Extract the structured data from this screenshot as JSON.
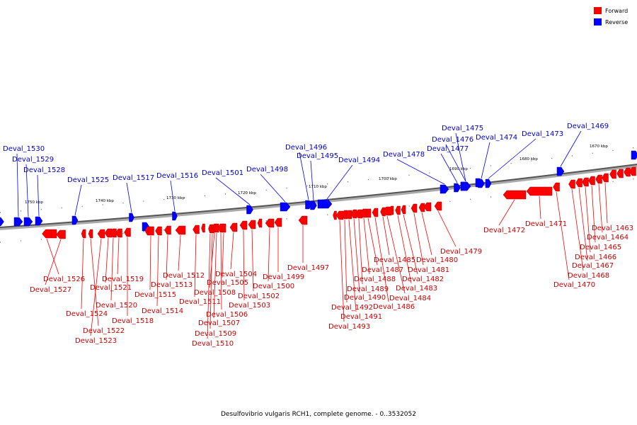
{
  "caption": "Desulfovibrio vulgaris RCH1, complete genome. - 0..3532052",
  "legend": [
    {
      "label": "Forward",
      "color": "#ff0000"
    },
    {
      "label": "Reverse",
      "color": "#0000ff"
    }
  ],
  "colors": {
    "forward": "#ff0000",
    "reverse": "#0000ff",
    "forward_label": "#cc0000",
    "reverse_label": "#0000cc"
  },
  "ticks": [
    "1750 kbp",
    "1740 kbp",
    "1730 kbp",
    "1720 kbp",
    "1710 kbp",
    "1700 kbp",
    "1690 kbp",
    "1680 kbp",
    "1670 kbp"
  ],
  "genes": [
    {
      "name": "Deval_1530",
      "strand": "reverse"
    },
    {
      "name": "Deval_1529",
      "strand": "reverse"
    },
    {
      "name": "Deval_1528",
      "strand": "reverse"
    },
    {
      "name": "Deval_1525",
      "strand": "reverse"
    },
    {
      "name": "Deval_1517",
      "strand": "reverse"
    },
    {
      "name": "Deval_1516",
      "strand": "reverse"
    },
    {
      "name": "Deval_1501",
      "strand": "reverse"
    },
    {
      "name": "Deval_1498",
      "strand": "reverse"
    },
    {
      "name": "Deval_1496",
      "strand": "reverse"
    },
    {
      "name": "Deval_1495",
      "strand": "reverse"
    },
    {
      "name": "Deval_1494",
      "strand": "reverse"
    },
    {
      "name": "Deval_1478",
      "strand": "reverse"
    },
    {
      "name": "Deval_1477",
      "strand": "reverse"
    },
    {
      "name": "Deval_1476",
      "strand": "reverse"
    },
    {
      "name": "Deval_1475",
      "strand": "reverse"
    },
    {
      "name": "Deval_1474",
      "strand": "reverse"
    },
    {
      "name": "Deval_1473",
      "strand": "reverse"
    },
    {
      "name": "Deval_1469",
      "strand": "reverse"
    },
    {
      "name": "Deval_1526",
      "strand": "forward"
    },
    {
      "name": "Deval_1527",
      "strand": "forward"
    },
    {
      "name": "Deval_1524",
      "strand": "forward"
    },
    {
      "name": "Deval_1522",
      "strand": "forward"
    },
    {
      "name": "Deval_1523",
      "strand": "forward"
    },
    {
      "name": "Deval_1521",
      "strand": "forward"
    },
    {
      "name": "Deval_1520",
      "strand": "forward"
    },
    {
      "name": "Deval_1519",
      "strand": "forward"
    },
    {
      "name": "Deval_1518",
      "strand": "forward"
    },
    {
      "name": "Deval_1515",
      "strand": "forward"
    },
    {
      "name": "Deval_1514",
      "strand": "forward"
    },
    {
      "name": "Deval_1513",
      "strand": "forward"
    },
    {
      "name": "Deval_1512",
      "strand": "forward"
    },
    {
      "name": "Deval_1511",
      "strand": "forward"
    },
    {
      "name": "Deval_1510",
      "strand": "forward"
    },
    {
      "name": "Deval_1509",
      "strand": "forward"
    },
    {
      "name": "Deval_1508",
      "strand": "forward"
    },
    {
      "name": "Deval_1507",
      "strand": "forward"
    },
    {
      "name": "Deval_1506",
      "strand": "forward"
    },
    {
      "name": "Deval_1505",
      "strand": "forward"
    },
    {
      "name": "Deval_1504",
      "strand": "forward"
    },
    {
      "name": "Deval_1503",
      "strand": "forward"
    },
    {
      "name": "Deval_1502",
      "strand": "forward"
    },
    {
      "name": "Deval_1500",
      "strand": "forward"
    },
    {
      "name": "Deval_1499",
      "strand": "forward"
    },
    {
      "name": "Deval_1497",
      "strand": "forward"
    },
    {
      "name": "Deval_1493",
      "strand": "forward"
    },
    {
      "name": "Deval_1492",
      "strand": "forward"
    },
    {
      "name": "Deval_1491",
      "strand": "forward"
    },
    {
      "name": "Deval_1490",
      "strand": "forward"
    },
    {
      "name": "Deval_1489",
      "strand": "forward"
    },
    {
      "name": "Deval_1488",
      "strand": "forward"
    },
    {
      "name": "Deval_1487",
      "strand": "forward"
    },
    {
      "name": "Deval_1486",
      "strand": "forward"
    },
    {
      "name": "Deval_1485",
      "strand": "forward"
    },
    {
      "name": "Deval_1484",
      "strand": "forward"
    },
    {
      "name": "Deval_1483",
      "strand": "forward"
    },
    {
      "name": "Deval_1482",
      "strand": "forward"
    },
    {
      "name": "Deval_1481",
      "strand": "forward"
    },
    {
      "name": "Deval_1480",
      "strand": "forward"
    },
    {
      "name": "Deval_1479",
      "strand": "forward"
    },
    {
      "name": "Deval_1472",
      "strand": "forward"
    },
    {
      "name": "Deval_1471",
      "strand": "forward"
    },
    {
      "name": "Deval_1470",
      "strand": "forward"
    },
    {
      "name": "Deval_1468",
      "strand": "forward"
    },
    {
      "name": "Deval_1467",
      "strand": "forward"
    },
    {
      "name": "Deval_1466",
      "strand": "forward"
    },
    {
      "name": "Deval_1465",
      "strand": "forward"
    },
    {
      "name": "Deval_1464",
      "strand": "forward"
    },
    {
      "name": "Deval_1463",
      "strand": "forward"
    }
  ]
}
